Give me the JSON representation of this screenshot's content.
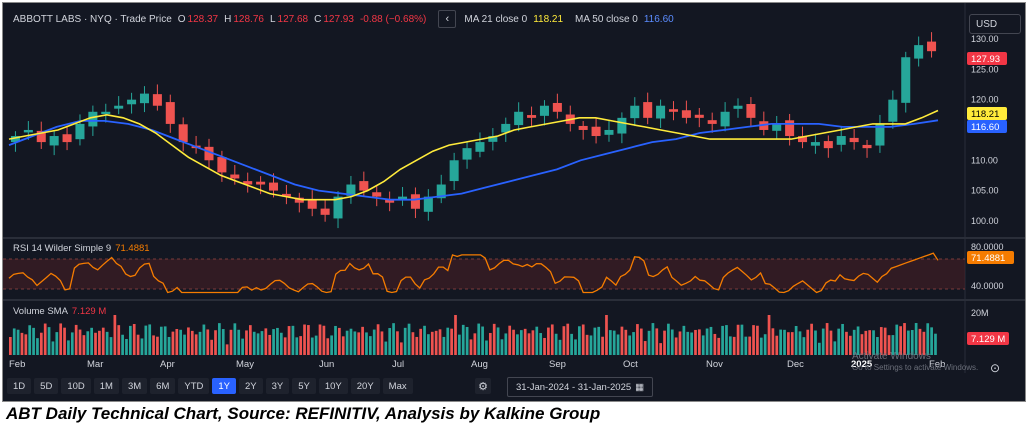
{
  "header": {
    "symbol": "ABBOTT LABS · NYQ · Trade Price",
    "o_label": "O",
    "o_val": "128.37",
    "h_label": "H",
    "h_val": "128.76",
    "l_label": "L",
    "l_val": "127.68",
    "c_label": "C",
    "c_val": "127.93",
    "change": "-0.88 (−0.68%)",
    "collapse_icon": "chevron-left",
    "ma21_label": "MA 21 close 0",
    "ma21_val": "118.21",
    "ma50_label": "MA 50 close 0",
    "ma50_val": "116.60"
  },
  "currency": "USD",
  "price_axis": {
    "ticks": [
      "130.00",
      "125.00",
      "120.00",
      "115.00",
      "110.00",
      "105.00",
      "100.00"
    ],
    "tick_values": [
      130,
      125,
      120,
      115,
      110,
      105,
      100
    ],
    "last_price": "127.93",
    "ma21_tag": "118.21",
    "ma50_tag": "116.60"
  },
  "rsi": {
    "title": "RSI 14 Wilder Simple 9",
    "value": "71.4881",
    "ticks": [
      "80.0000",
      "40.0000"
    ]
  },
  "volume": {
    "title": "Volume SMA",
    "value": "7.129 M",
    "tick": "20M",
    "tag": "7.129 M"
  },
  "x_axis": {
    "labels": [
      "Feb",
      "Mar",
      "Apr",
      "May",
      "Jun",
      "Jul",
      "Aug",
      "Sep",
      "Oct",
      "Nov",
      "Dec",
      "2025",
      "Feb"
    ]
  },
  "toolbar": {
    "ranges": [
      "1D",
      "5D",
      "10D",
      "1M",
      "3M",
      "6M",
      "YTD",
      "1Y",
      "2Y",
      "3Y",
      "5Y",
      "10Y",
      "20Y",
      "Max"
    ],
    "active": "1Y",
    "date_range": "31-Jan-2024  -  31-Jan-2025",
    "calendar_icon": "calendar-icon",
    "settings_icon": "gear-icon"
  },
  "watermark": {
    "line1": "Activate Windows",
    "line2": "Go to Settings to activate Windows."
  },
  "caption": "ABT Daily Technical Chart, Source: REFINITIV, Analysis by Kalkine Group",
  "colors": {
    "up": "#26a69a",
    "down": "#ef5350",
    "ma21": "#ffeb3b",
    "ma50": "#2962ff",
    "rsi": "#f57c00",
    "bg": "#131722",
    "last_tag": "#f23645"
  },
  "chart_data": {
    "type": "candlestick",
    "title": "ABBOTT LABS · NYQ · Trade Price",
    "ylim": [
      98,
      131
    ],
    "price_closes": [
      114,
      115,
      113,
      114,
      113,
      116,
      118,
      118,
      119,
      120,
      121,
      119,
      116,
      113,
      112,
      110,
      108,
      107,
      106,
      106,
      105,
      104,
      103,
      102,
      101,
      104,
      106,
      105,
      104,
      103,
      104,
      102,
      104,
      106,
      110,
      112,
      113,
      114,
      116,
      118,
      117,
      119,
      118,
      116,
      115,
      114,
      115,
      117,
      119,
      117,
      119,
      118,
      117,
      117,
      116,
      118,
      119,
      117,
      115,
      116,
      114,
      113,
      113,
      112,
      114,
      113,
      112,
      116,
      120,
      127,
      129,
      128
    ],
    "ma21": [
      113.5,
      114,
      114.5,
      115,
      116,
      117,
      117.5,
      117,
      116,
      114.5,
      112.5,
      110.5,
      109,
      107.5,
      106.5,
      105.5,
      104.5,
      104,
      103.5,
      103.5,
      103.5,
      104,
      105,
      106.5,
      108.5,
      110,
      111.5,
      112.5,
      113,
      113.5,
      114,
      115,
      115.5,
      116,
      116.5,
      117,
      117,
      116.5,
      116,
      115.5,
      115,
      114.5,
      114,
      113.5,
      113.5,
      113.5,
      113.5,
      113.5,
      113.5,
      114,
      114.5,
      115,
      115.5,
      116,
      116,
      116,
      117,
      118.21
    ],
    "ma50": [
      112.5,
      114,
      115.5,
      116.5,
      116.5,
      116,
      115,
      113.5,
      112,
      110.5,
      109,
      107.5,
      106,
      105,
      104.5,
      104,
      103.5,
      103.5,
      104,
      104.5,
      105.5,
      106.5,
      107.5,
      108.5,
      110,
      111,
      112,
      113,
      113.5,
      114.5,
      115,
      115.5,
      116,
      116,
      116,
      115.5,
      115.5,
      115.5,
      116,
      116.6
    ],
    "rsi_series_desc": "oscillates roughly between 40 and 80, last 71.4881",
    "volume_last": "7.129 M"
  }
}
